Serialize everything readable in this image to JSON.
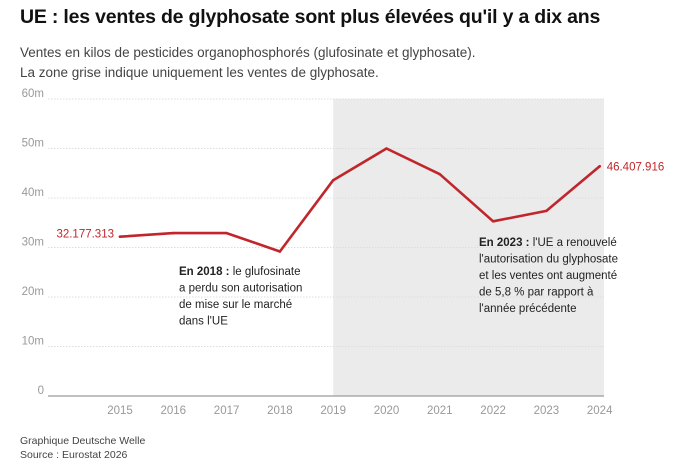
{
  "title": "UE : les ventes de glyphosate sont plus élevées qu'il y a dix ans",
  "subtitle_line1": "Ventes en kilos de pesticides organophosphorés (glufosinate et glyphosate).",
  "subtitle_line2": "La zone grise indique uniquement les ventes de glyphosate.",
  "footer_line1": "Graphique Deutsche Welle",
  "footer_line2": "Source : Eurostat 2026",
  "colors": {
    "line": "#c0262b",
    "shade": "#ebebeb",
    "grid": "#dddddd",
    "axis_text": "#999999",
    "label_text": "#c0262b"
  },
  "chart_data": {
    "type": "line",
    "x": [
      2015,
      2016,
      2017,
      2018,
      2019,
      2020,
      2021,
      2022,
      2023,
      2024
    ],
    "series": [
      {
        "values": [
          32.18,
          32.9,
          32.9,
          29.2,
          43.6,
          50.0,
          44.8,
          35.3,
          37.4,
          46.41
        ]
      }
    ],
    "ylim": [
      0,
      60
    ],
    "yticks": [
      0,
      10,
      20,
      30,
      40,
      50,
      60
    ],
    "ytick_labels": [
      "0",
      "10m",
      "20m",
      "30m",
      "40m",
      "50m",
      "60m"
    ],
    "grid": true,
    "shaded_region": {
      "from": 2019,
      "to": 2024
    },
    "data_labels": {
      "start": "32.177.313",
      "end": "46.407.916"
    },
    "annotations": [
      {
        "bold": "En 2018 :",
        "text": " le glufosinate",
        "lines": [
          "a perdu son autorisation",
          "de mise sur le marché",
          "dans l'UE"
        ]
      },
      {
        "bold": "En 2023 :",
        "text": " l'UE a renouvelé",
        "lines": [
          "l'autorisation du glyphosate",
          "et les ventes ont augmenté",
          "de 5,8 % par rapport à",
          "l'année précédente"
        ]
      }
    ]
  }
}
